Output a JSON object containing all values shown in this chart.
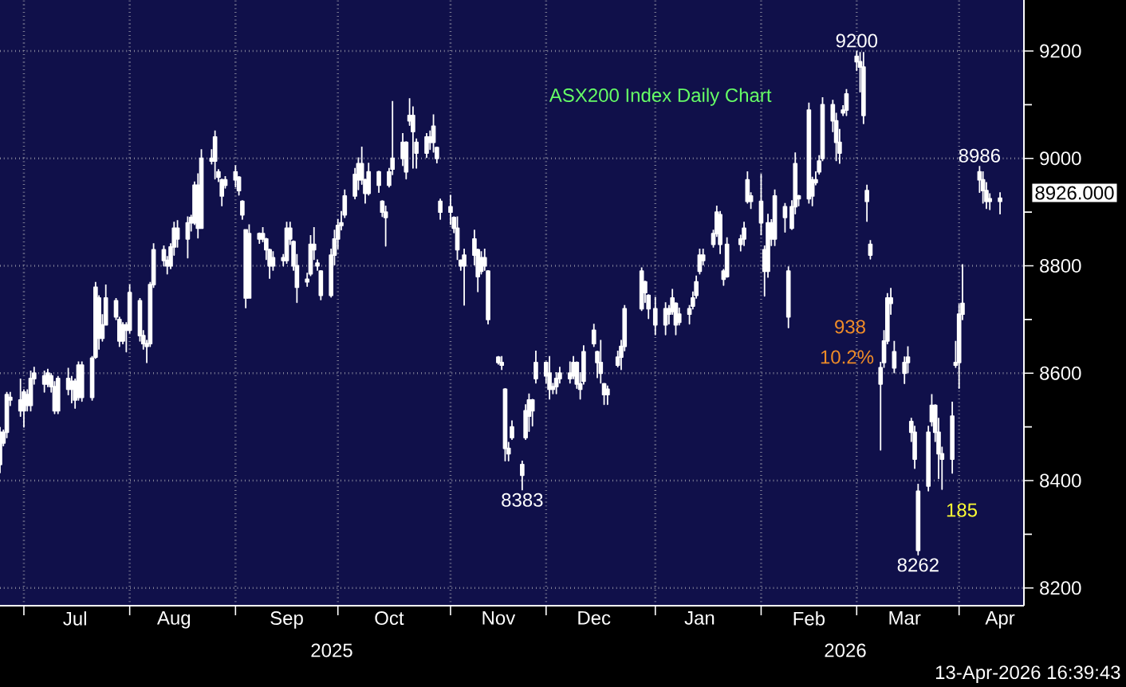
{
  "chart_data": {
    "type": "candlestick",
    "title": "ASX200 Index Daily Chart",
    "color": "#ffffff",
    "x": [
      "2025-06-24",
      "2025-06-25",
      "2025-06-26",
      "2025-06-27",
      "2025-06-30",
      "2025-07-01",
      "2025-07-02",
      "2025-07-03",
      "2025-07-04",
      "2025-07-07",
      "2025-07-08",
      "2025-07-09",
      "2025-07-10",
      "2025-07-11",
      "2025-07-14",
      "2025-07-15",
      "2025-07-16",
      "2025-07-17",
      "2025-07-18",
      "2025-07-21",
      "2025-07-22",
      "2025-07-23",
      "2025-07-24",
      "2025-07-25",
      "2025-07-28",
      "2025-07-29",
      "2025-07-30",
      "2025-07-31",
      "2025-08-01",
      "2025-08-04",
      "2025-08-05",
      "2025-08-06",
      "2025-08-07",
      "2025-08-08",
      "2025-08-11",
      "2025-08-12",
      "2025-08-13",
      "2025-08-14",
      "2025-08-15",
      "2025-08-18",
      "2025-08-19",
      "2025-08-20",
      "2025-08-21",
      "2025-08-22",
      "2025-08-25",
      "2025-08-26",
      "2025-08-27",
      "2025-08-28",
      "2025-08-29",
      "2025-09-01",
      "2025-09-02",
      "2025-09-03",
      "2025-09-04",
      "2025-09-05",
      "2025-09-08",
      "2025-09-09",
      "2025-09-10",
      "2025-09-11",
      "2025-09-12",
      "2025-09-15",
      "2025-09-16",
      "2025-09-17",
      "2025-09-18",
      "2025-09-19",
      "2025-09-22",
      "2025-09-23",
      "2025-09-24",
      "2025-09-25",
      "2025-09-26",
      "2025-09-29",
      "2025-09-30",
      "2025-10-01",
      "2025-10-02",
      "2025-10-03",
      "2025-10-06",
      "2025-10-07",
      "2025-10-08",
      "2025-10-09",
      "2025-10-10",
      "2025-10-13",
      "2025-10-14",
      "2025-10-15",
      "2025-10-16",
      "2025-10-17",
      "2025-10-20",
      "2025-10-21",
      "2025-10-22",
      "2025-10-23",
      "2025-10-24",
      "2025-10-27",
      "2025-10-28",
      "2025-10-29",
      "2025-10-30",
      "2025-10-31",
      "2025-11-03",
      "2025-11-04",
      "2025-11-05",
      "2025-11-06",
      "2025-11-07",
      "2025-11-10",
      "2025-11-11",
      "2025-11-12",
      "2025-11-13",
      "2025-11-14",
      "2025-11-17",
      "2025-11-18",
      "2025-11-19",
      "2025-11-20",
      "2025-11-21",
      "2025-11-24",
      "2025-11-25",
      "2025-11-26",
      "2025-11-27",
      "2025-11-28",
      "2025-12-01",
      "2025-12-02",
      "2025-12-03",
      "2025-12-04",
      "2025-12-05",
      "2025-12-08",
      "2025-12-09",
      "2025-12-10",
      "2025-12-11",
      "2025-12-12",
      "2025-12-15",
      "2025-12-16",
      "2025-12-17",
      "2025-12-18",
      "2025-12-19",
      "2025-12-22",
      "2025-12-23",
      "2025-12-24",
      "2025-12-29",
      "2025-12-30",
      "2025-12-31",
      "2026-01-02",
      "2026-01-05",
      "2026-01-06",
      "2026-01-07",
      "2026-01-08",
      "2026-01-09",
      "2026-01-12",
      "2026-01-13",
      "2026-01-14",
      "2026-01-15",
      "2026-01-16",
      "2026-01-19",
      "2026-01-20",
      "2026-01-21",
      "2026-01-22",
      "2026-01-23",
      "2026-01-27",
      "2026-01-28",
      "2026-01-29",
      "2026-01-30",
      "2026-02-02",
      "2026-02-03",
      "2026-02-04",
      "2026-02-05",
      "2026-02-06",
      "2026-02-09",
      "2026-02-10",
      "2026-02-11",
      "2026-02-12",
      "2026-02-13",
      "2026-02-16",
      "2026-02-17",
      "2026-02-18",
      "2026-02-19",
      "2026-02-20",
      "2026-02-23",
      "2026-02-24",
      "2026-02-25",
      "2026-02-26",
      "2026-02-27",
      "2026-03-02",
      "2026-03-03",
      "2026-03-04",
      "2026-03-05",
      "2026-03-06",
      "2026-03-09",
      "2026-03-10",
      "2026-03-11",
      "2026-03-12",
      "2026-03-13",
      "2026-03-16",
      "2026-03-17",
      "2026-03-18",
      "2026-03-19",
      "2026-03-20",
      "2026-03-23",
      "2026-03-24",
      "2026-03-25",
      "2026-03-26",
      "2026-03-27",
      "2026-03-30",
      "2026-03-31",
      "2026-04-01",
      "2026-04-02",
      "2026-04-07",
      "2026-04-08",
      "2026-04-09",
      "2026-04-10",
      "2026-04-13"
    ],
    "ohlc": [
      [
        8430,
        8500,
        8415,
        8490
      ],
      [
        8470,
        8495,
        8465,
        8490
      ],
      [
        8490,
        8565,
        8480,
        8560
      ],
      [
        8555,
        8565,
        8540,
        8550
      ],
      [
        8550,
        8590,
        8520,
        8530
      ],
      [
        8530,
        8570,
        8500,
        8565
      ],
      [
        8560,
        8570,
        8530,
        8540
      ],
      [
        8540,
        8605,
        8530,
        8590
      ],
      [
        8590,
        8612,
        8580,
        8600
      ],
      [
        8595,
        8605,
        8565,
        8580
      ],
      [
        8580,
        8608,
        8575,
        8600
      ],
      [
        8595,
        8600,
        8565,
        8575
      ],
      [
        8575,
        8585,
        8525,
        8530
      ],
      [
        8530,
        8595,
        8525,
        8590
      ],
      [
        8590,
        8610,
        8560,
        8570
      ],
      [
        8570,
        8595,
        8545,
        8585
      ],
      [
        8585,
        8590,
        8535,
        8550
      ],
      [
        8555,
        8622,
        8550,
        8615
      ],
      [
        8615,
        8622,
        8548,
        8555
      ],
      [
        8555,
        8632,
        8550,
        8628
      ],
      [
        8630,
        8770,
        8628,
        8760
      ],
      [
        8740,
        8745,
        8645,
        8665
      ],
      [
        8665,
        8710,
        8660,
        8690
      ],
      [
        8690,
        8765,
        8690,
        8740
      ],
      [
        8735,
        8740,
        8700,
        8705
      ],
      [
        8700,
        8705,
        8650,
        8660
      ],
      [
        8660,
        8695,
        8655,
        8690
      ],
      [
        8690,
        8695,
        8640,
        8680
      ],
      [
        8680,
        8765,
        8675,
        8750
      ],
      [
        8735,
        8740,
        8660,
        8670
      ],
      [
        8670,
        8680,
        8645,
        8655
      ],
      [
        8655,
        8662,
        8620,
        8650
      ],
      [
        8655,
        8770,
        8650,
        8765
      ],
      [
        8765,
        8842,
        8760,
        8830
      ],
      [
        8830,
        8838,
        8800,
        8810
      ],
      [
        8810,
        8818,
        8785,
        8800
      ],
      [
        8800,
        8842,
        8795,
        8835
      ],
      [
        8835,
        8882,
        8820,
        8870
      ],
      [
        8870,
        8885,
        8835,
        8850
      ],
      [
        8850,
        8892,
        8815,
        8880
      ],
      [
        8880,
        8895,
        8865,
        8890
      ],
      [
        8880,
        8957,
        8877,
        8950
      ],
      [
        8950,
        8972,
        8852,
        8870
      ],
      [
        8870,
        9017,
        8870,
        9000
      ],
      [
        9000,
        9017,
        8990,
        8995
      ],
      [
        8995,
        9052,
        8962,
        9040
      ],
      [
        8975,
        8980,
        8957,
        8965
      ],
      [
        8960,
        8962,
        8912,
        8930
      ],
      [
        8950,
        8967,
        8945,
        8960
      ],
      [
        8960,
        8987,
        8947,
        8975
      ],
      [
        8965,
        8967,
        8932,
        8940
      ],
      [
        8920,
        8922,
        8887,
        8895
      ],
      [
        8867,
        8867,
        8722,
        8740
      ],
      [
        8740,
        8877,
        8740,
        8860
      ],
      [
        8860,
        8862,
        8842,
        8850
      ],
      [
        8850,
        8872,
        8845,
        8860
      ],
      [
        8850,
        8852,
        8812,
        8830
      ],
      [
        8830,
        8832,
        8777,
        8800
      ],
      [
        8800,
        8827,
        8792,
        8815
      ],
      [
        8815,
        8822,
        8800,
        8810
      ],
      [
        8810,
        8882,
        8805,
        8870
      ],
      [
        8870,
        8882,
        8840,
        8850
      ],
      [
        8845,
        8847,
        8792,
        8800
      ],
      [
        8800,
        8822,
        8732,
        8760
      ],
      [
        8770,
        8787,
        8762,
        8775
      ],
      [
        8785,
        8857,
        8782,
        8840
      ],
      [
        8840,
        8872,
        8812,
        8830
      ],
      [
        8805,
        8812,
        8792,
        8800
      ],
      [
        8790,
        8792,
        8737,
        8745
      ],
      [
        8745,
        8832,
        8742,
        8820
      ],
      [
        8820,
        8867,
        8802,
        8850
      ],
      [
        8850,
        8887,
        8832,
        8875
      ],
      [
        8875,
        8902,
        8867,
        8880
      ],
      [
        8895,
        8942,
        8890,
        8930
      ],
      [
        8930,
        8982,
        8925,
        8970
      ],
      [
        8960,
        9002,
        8942,
        8990
      ],
      [
        8990,
        9022,
        8952,
        8960
      ],
      [
        8960,
        8962,
        8917,
        8935
      ],
      [
        8935,
        8992,
        8932,
        8975
      ],
      [
        8975,
        8977,
        8937,
        8950
      ],
      [
        8920,
        8922,
        8892,
        8900
      ],
      [
        8900,
        8912,
        8837,
        8890
      ],
      [
        8950,
        8982,
        8947,
        8975
      ],
      [
        8980,
        9107,
        8970,
        9000
      ],
      [
        9000,
        9047,
        8987,
        9030
      ],
      [
        9030,
        9032,
        8962,
        8975
      ],
      [
        9070,
        9112,
        9062,
        9080
      ],
      [
        9080,
        9097,
        8982,
        9050
      ],
      [
        9030,
        9037,
        8982,
        9010
      ],
      [
        9010,
        9047,
        9002,
        9040
      ],
      [
        9040,
        9052,
        9017,
        9030
      ],
      [
        9030,
        9082,
        9012,
        9060
      ],
      [
        9020,
        9022,
        8992,
        9000
      ],
      [
        8920,
        8925,
        8887,
        8900
      ],
      [
        8900,
        8932,
        8877,
        8910
      ],
      [
        8890,
        8892,
        8862,
        8870
      ],
      [
        8870,
        8892,
        8812,
        8830
      ],
      [
        8810,
        8812,
        8792,
        8800
      ],
      [
        8800,
        8832,
        8727,
        8820
      ],
      [
        8820,
        8867,
        8802,
        8850
      ],
      [
        8830,
        8832,
        8752,
        8780
      ],
      [
        8790,
        8827,
        8785,
        8815
      ],
      [
        8815,
        8832,
        8792,
        8800
      ],
      [
        8790,
        8792,
        8692,
        8700
      ],
      [
        8630,
        8632,
        8617,
        8620
      ],
      [
        8620,
        8632,
        8607,
        8615
      ],
      [
        8570,
        8572,
        8437,
        8460
      ],
      [
        8460,
        8472,
        8437,
        8450
      ],
      [
        8480,
        8512,
        8477,
        8500
      ],
      [
        8430,
        8437,
        8383,
        8410
      ],
      [
        8480,
        8542,
        8477,
        8530
      ],
      [
        8520,
        8562,
        8492,
        8550
      ],
      [
        8550,
        8552,
        8502,
        8530
      ],
      [
        8590,
        8642,
        8582,
        8620
      ],
      [
        8620,
        8622,
        8582,
        8595
      ],
      [
        8600,
        8632,
        8552,
        8570
      ],
      [
        8570,
        8582,
        8562,
        8575
      ],
      [
        8575,
        8602,
        8562,
        8590
      ],
      [
        8590,
        8612,
        8582,
        8600
      ],
      [
        8600,
        8622,
        8582,
        8590
      ],
      [
        8595,
        8632,
        8590,
        8620
      ],
      [
        8620,
        8622,
        8572,
        8580
      ],
      [
        8580,
        8602,
        8552,
        8570
      ],
      [
        8585,
        8652,
        8580,
        8640
      ],
      [
        8655,
        8692,
        8650,
        8680
      ],
      [
        8640,
        8642,
        8592,
        8620
      ],
      [
        8620,
        8662,
        8582,
        8600
      ],
      [
        8580,
        8582,
        8542,
        8560
      ],
      [
        8560,
        8577,
        8542,
        8570
      ],
      [
        8615,
        8642,
        8612,
        8630
      ],
      [
        8630,
        8662,
        8607,
        8650
      ],
      [
        8650,
        8727,
        8642,
        8720
      ],
      [
        8720,
        8797,
        8717,
        8790
      ],
      [
        8770,
        8772,
        8732,
        8750
      ],
      [
        8745,
        8747,
        8702,
        8720
      ],
      [
        8720,
        8742,
        8672,
        8690
      ],
      [
        8690,
        8732,
        8672,
        8720
      ],
      [
        8720,
        8727,
        8692,
        8710
      ],
      [
        8715,
        8757,
        8710,
        8740
      ],
      [
        8730,
        8732,
        8672,
        8690
      ],
      [
        8695,
        8722,
        8690,
        8710
      ],
      [
        8710,
        8727,
        8692,
        8720
      ],
      [
        8725,
        8752,
        8720,
        8740
      ],
      [
        8745,
        8782,
        8740,
        8770
      ],
      [
        8790,
        8832,
        8785,
        8820
      ],
      [
        8820,
        8832,
        8802,
        8810
      ],
      [
        8840,
        8867,
        8835,
        8860
      ],
      [
        8860,
        8912,
        8855,
        8900
      ],
      [
        8895,
        8902,
        8823,
        8840
      ],
      [
        8790,
        8794,
        8764,
        8775
      ],
      [
        8780,
        8853,
        8779,
        8840
      ],
      [
        8840,
        8858,
        8828,
        8850
      ],
      [
        8850,
        8882,
        8838,
        8870
      ],
      [
        8920,
        8976,
        8917,
        8960
      ],
      [
        8930,
        8937,
        8907,
        8920
      ],
      [
        8920,
        8971,
        8858,
        8880
      ],
      [
        8830,
        8838,
        8744,
        8790
      ],
      [
        8790,
        8897,
        8779,
        8880
      ],
      [
        8880,
        8887,
        8838,
        8850
      ],
      [
        8850,
        8942,
        8838,
        8930
      ],
      [
        8910,
        8917,
        8863,
        8890
      ],
      [
        8790,
        8799,
        8685,
        8705
      ],
      [
        8870,
        8922,
        8868,
        8910
      ],
      [
        8910,
        9011,
        8897,
        8990
      ],
      [
        8930,
        8932,
        8912,
        8925
      ],
      [
        8925,
        9104,
        8917,
        9090
      ],
      [
        8960,
        8966,
        8912,
        8930
      ],
      [
        8955,
        8976,
        8951,
        8960
      ],
      [
        8975,
        9006,
        8971,
        8995
      ],
      [
        9000,
        9114,
        8996,
        9100
      ],
      [
        9100,
        9109,
        9050,
        9070
      ],
      [
        9070,
        9085,
        8996,
        9030
      ],
      [
        9030,
        9055,
        8991,
        9010
      ],
      [
        9085,
        9099,
        9080,
        9090
      ],
      [
        9090,
        9129,
        9080,
        9120
      ],
      [
        9190,
        9200,
        9164,
        9180
      ],
      [
        9180,
        9198,
        9124,
        9170
      ],
      [
        9170,
        9198,
        9065,
        9080
      ],
      [
        8920,
        8951,
        8883,
        8940
      ],
      [
        8840,
        8848,
        8813,
        8820
      ],
      [
        8610,
        8621,
        8457,
        8580
      ],
      [
        8620,
        8680,
        8611,
        8660
      ],
      [
        8660,
        8749,
        8655,
        8740
      ],
      [
        8740,
        8759,
        8710,
        8730
      ],
      [
        8640,
        8660,
        8601,
        8610
      ],
      [
        8600,
        8631,
        8581,
        8620
      ],
      [
        8620,
        8650,
        8601,
        8630
      ],
      [
        8510,
        8517,
        8473,
        8490
      ],
      [
        8490,
        8502,
        8423,
        8440
      ],
      [
        8380,
        8394,
        8262,
        8270
      ],
      [
        8390,
        8502,
        8381,
        8490
      ],
      [
        8510,
        8561,
        8502,
        8540
      ],
      [
        8540,
        8542,
        8473,
        8490
      ],
      [
        8490,
        8517,
        8404,
        8450
      ],
      [
        8450,
        8463,
        8384,
        8440
      ],
      [
        8440,
        8547,
        8414,
        8520
      ],
      [
        8615,
        8660,
        8611,
        8620
      ],
      [
        8620,
        8729,
        8572,
        8710
      ],
      [
        8710,
        8803,
        8700,
        8730
      ],
      [
        8975,
        8986,
        8937,
        8960
      ],
      [
        8960,
        8976,
        8917,
        8940
      ],
      [
        8940,
        8956,
        8907,
        8920
      ],
      [
        8920,
        8935,
        8905,
        8925
      ],
      [
        8920,
        8937,
        8897,
        8926
      ]
    ],
    "xlim": [
      "2025-06-24",
      "2026-04-20"
    ],
    "xticks": [
      {
        "value": "2025-07-01",
        "label": null
      },
      {
        "value": "2025-07-16",
        "label": "Jul"
      },
      {
        "value": "2025-08-01",
        "label": null
      },
      {
        "value": "2025-08-14",
        "label": "Aug"
      },
      {
        "value": "2025-09-01",
        "label": null
      },
      {
        "value": "2025-09-16",
        "label": "Sep"
      },
      {
        "value": "2025-10-01",
        "label": null
      },
      {
        "value": "2025-10-16",
        "label": "Oct"
      },
      {
        "value": "2025-11-03",
        "label": null
      },
      {
        "value": "2025-11-17",
        "label": "Nov"
      },
      {
        "value": "2025-12-01",
        "label": null
      },
      {
        "value": "2025-12-15",
        "label": "Dec"
      },
      {
        "value": "2026-01-02",
        "label": null
      },
      {
        "value": "2026-01-15",
        "label": "Jan"
      },
      {
        "value": "2026-02-02",
        "label": null
      },
      {
        "value": "2026-02-16",
        "label": "Feb"
      },
      {
        "value": "2026-03-02",
        "label": null
      },
      {
        "value": "2026-03-16",
        "label": "Mar"
      },
      {
        "value": "2026-04-01",
        "label": null
      },
      {
        "value": "2026-04-13",
        "label": "Apr"
      }
    ],
    "ylim": [
      8167,
      9295
    ],
    "yticks": [
      8200,
      {
        "value": 8300,
        "label": null
      },
      8400,
      {
        "value": 8500,
        "label": null
      },
      8600,
      {
        "value": 8700,
        "label": null
      },
      8800,
      {
        "value": 8900,
        "label": null
      },
      9000,
      {
        "value": 9100,
        "label": null
      },
      9200
    ],
    "grid": true,
    "annotations": [
      {
        "text": "9200",
        "x": "2026-03-02",
        "y": 9200
      },
      {
        "text": "8986",
        "x": "2026-04-07",
        "y": 8986
      },
      {
        "text": "8383",
        "x": "2025-11-24",
        "y": 8383
      },
      {
        "text": "8262",
        "x": "2026-03-20",
        "y": 8262
      },
      "938",
      "10.2%",
      "185",
      "8926.000",
      "2025",
      "2026",
      "13-Apr-2026 16:39:43"
    ]
  }
}
